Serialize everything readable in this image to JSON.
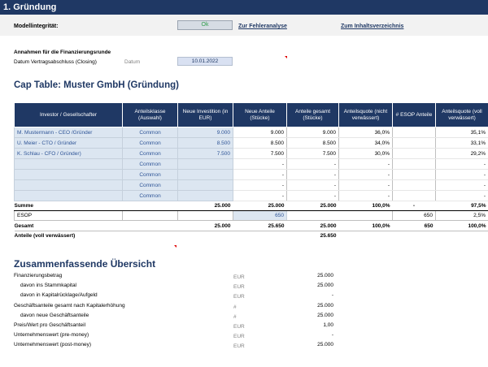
{
  "page_title": "1. Gründung",
  "integrity": {
    "label": "Modellintegrität:",
    "status": "Ok",
    "error_link": "Zur Fehleranalyse",
    "toc_link": "Zum Inhaltsverzeichnis"
  },
  "assumptions": {
    "heading": "Annahmen für die Finanzierungsrunde",
    "closing_label": "Datum Vertragsabschluss (Closing)",
    "closing_unit": "Datum",
    "closing_value": "10.01.2022"
  },
  "cap_table": {
    "title": "Cap Table: Muster GmbH (Gründung)",
    "headers": [
      "Investor / Gesellschafter",
      "Anteilsklasse (Auswahl)",
      "Neue Investition (in EUR)",
      "Neue Anteile (Stücke)",
      "Anteile gesamt (Stücke)",
      "Anteilsquote (nicht verwässert)",
      "# ESOP Anteile",
      "Anteilsquote (voll verwässert)"
    ],
    "rows": [
      {
        "investor": "M. Mustermann - CEO /Gründer",
        "class": "Common",
        "investment": "9.000",
        "new_shares": "9.000",
        "total_shares": "9.000",
        "quota": "36,0%",
        "esop": "",
        "quota_diluted": "35,1%"
      },
      {
        "investor": "U. Meier - CTO / Gründer",
        "class": "Common",
        "investment": "8.500",
        "new_shares": "8.500",
        "total_shares": "8.500",
        "quota": "34,0%",
        "esop": "",
        "quota_diluted": "33,1%"
      },
      {
        "investor": "K. Schlau - CFO / Gründer)",
        "class": "Common",
        "investment": "7.500",
        "new_shares": "7.500",
        "total_shares": "7.500",
        "quota": "30,0%",
        "esop": "",
        "quota_diluted": "29,2%"
      },
      {
        "investor": "",
        "class": "Common",
        "investment": "",
        "new_shares": "-",
        "total_shares": "-",
        "quota": "-",
        "esop": "",
        "quota_diluted": "-"
      },
      {
        "investor": "",
        "class": "Common",
        "investment": "",
        "new_shares": "-",
        "total_shares": "-",
        "quota": "-",
        "esop": "",
        "quota_diluted": "-"
      },
      {
        "investor": "",
        "class": "Common",
        "investment": "",
        "new_shares": "-",
        "total_shares": "-",
        "quota": "-",
        "esop": "",
        "quota_diluted": "-"
      },
      {
        "investor": "",
        "class": "Common",
        "investment": "",
        "new_shares": "-",
        "total_shares": "-",
        "quota": "-",
        "esop": "",
        "quota_diluted": "-"
      }
    ],
    "sum": {
      "label": "Summe",
      "investment": "25.000",
      "new_shares": "25.000",
      "total_shares": "25.000",
      "quota": "100,0%",
      "esop": "-",
      "quota_diluted": "97,5%"
    },
    "esop": {
      "label": "ESOP",
      "new_shares": "650",
      "esop": "650",
      "quota_diluted": "2,5%"
    },
    "total": {
      "label": "Gesamt",
      "investment": "25.000",
      "new_shares": "25.650",
      "total_shares": "25.000",
      "quota": "100,0%",
      "esop": "650",
      "quota_diluted": "100,0%"
    },
    "diluted": {
      "label": "Anteile (voll verwässert)",
      "total_shares": "25.650"
    }
  },
  "summary": {
    "title": "Zusammenfassende Übersicht",
    "rows": [
      {
        "label": "Finanzierungsbetrag",
        "unit": "EUR",
        "value": "25.000",
        "indent": false
      },
      {
        "label": "davon ins Stammkapital",
        "unit": "EUR",
        "value": "25.000",
        "indent": true
      },
      {
        "label": "davon in Kapitalrücklage/Aufgeld",
        "unit": "EUR",
        "value": "-",
        "indent": true
      },
      {
        "label": "Geschäftsanteile gesamt nach Kapitalerhöhung",
        "unit": "#",
        "value": "25.000",
        "indent": false
      },
      {
        "label": "davon neue Geschäftsanteile",
        "unit": "#",
        "value": "25.000",
        "indent": true
      },
      {
        "label": "Preis/Wert pro Geschäftsanteil",
        "unit": "EUR",
        "value": "1,00",
        "indent": false
      },
      {
        "label": "Unternehmenswert (pre-money)",
        "unit": "EUR",
        "value": "-",
        "indent": false
      },
      {
        "label": "Unternehmenswert (post-money)",
        "unit": "EUR",
        "value": "25.000",
        "indent": false
      }
    ]
  }
}
